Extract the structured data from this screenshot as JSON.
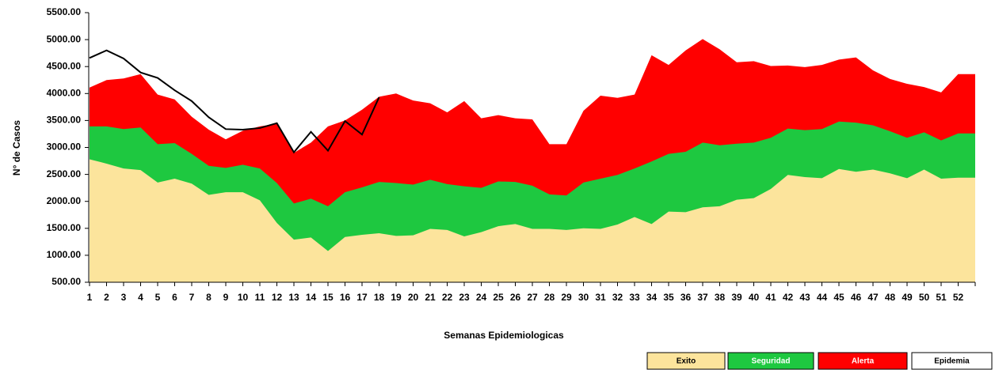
{
  "chart_data": {
    "type": "area",
    "xlabel": "Semanas Epidemiologicas",
    "ylabel": "N° de Casos",
    "categories": [
      "1",
      "2",
      "3",
      "4",
      "5",
      "6",
      "7",
      "8",
      "9",
      "10",
      "11",
      "12",
      "13",
      "14",
      "15",
      "16",
      "17",
      "18",
      "19",
      "20",
      "21",
      "22",
      "23",
      "24",
      "25",
      "26",
      "27",
      "28",
      "29",
      "30",
      "31",
      "32",
      "33",
      "34",
      "35",
      "36",
      "37",
      "38",
      "39",
      "40",
      "41",
      "42",
      "43",
      "44",
      "45",
      "46",
      "47",
      "48",
      "49",
      "50",
      "51",
      "52",
      null
    ],
    "ylim": [
      500,
      5500
    ],
    "yticks": [
      {
        "value": 500,
        "label": "500.00"
      },
      {
        "value": 1000,
        "label": "1000.00"
      },
      {
        "value": 1500,
        "label": "1500.00"
      },
      {
        "value": 2000,
        "label": "2000.00"
      },
      {
        "value": 2500,
        "label": "2500.00"
      },
      {
        "value": 3000,
        "label": "3000.00"
      },
      {
        "value": 3500,
        "label": "3500.00"
      },
      {
        "value": 4000,
        "label": "4000.00"
      },
      {
        "value": 4500,
        "label": "4500.00"
      },
      {
        "value": 5000,
        "label": "5000.00"
      },
      {
        "value": 5500,
        "label": "5500.00"
      }
    ],
    "series": [
      {
        "name": "Exito",
        "type": "area",
        "color": "#fce49c",
        "values": [
          2780,
          2700,
          2610,
          2580,
          2350,
          2420,
          2330,
          2120,
          2170,
          2170,
          2020,
          1600,
          1290,
          1330,
          1080,
          1340,
          1380,
          1410,
          1360,
          1370,
          1490,
          1470,
          1350,
          1430,
          1540,
          1580,
          1490,
          1490,
          1470,
          1500,
          1490,
          1570,
          1710,
          1580,
          1810,
          1800,
          1890,
          1910,
          2030,
          2060,
          2230,
          2490,
          2450,
          2430,
          2600,
          2550,
          2590,
          2520,
          2430,
          2590,
          2420,
          2440,
          2440
        ]
      },
      {
        "name": "Seguridad",
        "type": "area",
        "color": "#1ec840",
        "values": [
          3390,
          3390,
          3340,
          3370,
          3060,
          3080,
          2880,
          2660,
          2620,
          2680,
          2610,
          2340,
          1960,
          2050,
          1910,
          2170,
          2260,
          2360,
          2340,
          2310,
          2400,
          2320,
          2280,
          2250,
          2370,
          2360,
          2290,
          2130,
          2110,
          2350,
          2420,
          2490,
          2610,
          2740,
          2880,
          2920,
          3090,
          3040,
          3070,
          3090,
          3180,
          3350,
          3320,
          3340,
          3480,
          3460,
          3410,
          3300,
          3180,
          3280,
          3130,
          3260,
          3260
        ]
      },
      {
        "name": "Alerta",
        "type": "area",
        "color": "#ff0000",
        "values": [
          4110,
          4250,
          4280,
          4360,
          3980,
          3890,
          3570,
          3330,
          3150,
          3310,
          3390,
          3440,
          2900,
          3090,
          3390,
          3500,
          3700,
          3940,
          4000,
          3870,
          3820,
          3650,
          3860,
          3540,
          3600,
          3540,
          3520,
          3060,
          3060,
          3680,
          3960,
          3920,
          3980,
          4710,
          4530,
          4800,
          5010,
          4820,
          4580,
          4600,
          4510,
          4520,
          4490,
          4530,
          4630,
          4670,
          4430,
          4270,
          4180,
          4120,
          4020,
          4360,
          4360
        ]
      },
      {
        "name": "Epidemia",
        "type": "line",
        "color": "#000000",
        "values": [
          4660,
          4800,
          4650,
          4390,
          4290,
          4060,
          3860,
          3560,
          3340,
          3330,
          3360,
          3450,
          2910,
          3290,
          2940,
          3490,
          3240,
          3930,
          null,
          null,
          null,
          null,
          null,
          null,
          null,
          null,
          null,
          null,
          null,
          null,
          null,
          null,
          null,
          null,
          null,
          null,
          null,
          null,
          null,
          null,
          null,
          null,
          null,
          null,
          null,
          null,
          null,
          null,
          null,
          null,
          null,
          null,
          null
        ]
      }
    ]
  }
}
